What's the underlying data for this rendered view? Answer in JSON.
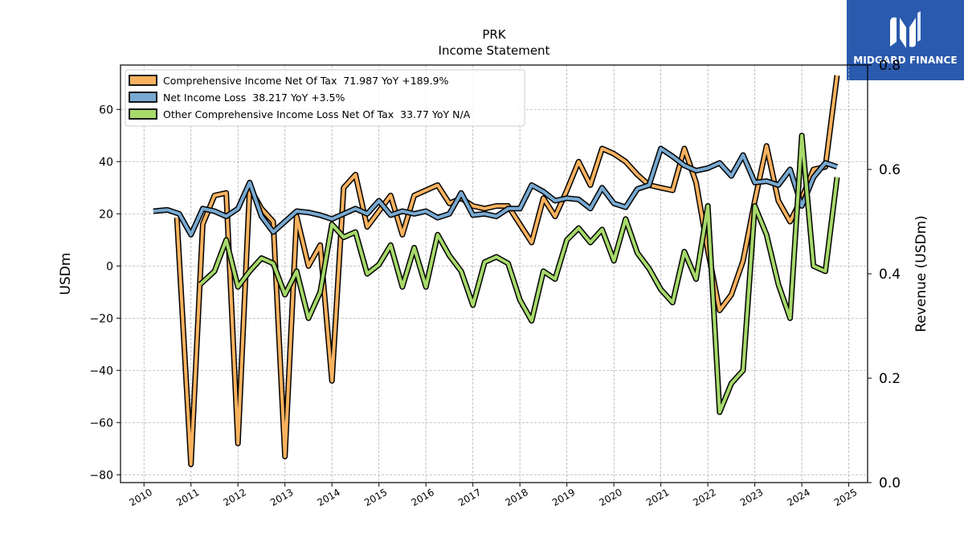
{
  "logo": {
    "text": "MIDGARD FINANCE",
    "icon": "midgard-logo-icon",
    "bg_color": "#2a5aad"
  },
  "chart_data": {
    "type": "line",
    "title": "PRK",
    "subtitle": "Income Statement",
    "ylabel_left": "USDm",
    "ylabel_right": "Revenue (USDm)",
    "ylim_left": [
      -83,
      77
    ],
    "ylim_right": [
      0,
      0.8
    ],
    "xlim": [
      2009.5,
      2025.4
    ],
    "yticks_left": [
      -80,
      -60,
      -40,
      -20,
      0,
      20,
      40,
      60
    ],
    "yticks_right": [
      0.0,
      0.2,
      0.4,
      0.6,
      0.8
    ],
    "xticks": [
      2010,
      2011,
      2012,
      2013,
      2014,
      2015,
      2016,
      2017,
      2018,
      2019,
      2020,
      2021,
      2022,
      2023,
      2024,
      2025
    ],
    "grid": true,
    "legend_position": "top-left",
    "series": [
      {
        "name": "Comprehensive Income Net Of Tax  71.987 YoY +189.9%",
        "color": "#f8b25f",
        "points": [
          [
            2010.7,
            18.5
          ],
          [
            2011.0,
            -76
          ],
          [
            2011.25,
            16
          ],
          [
            2011.5,
            27
          ],
          [
            2011.75,
            28
          ],
          [
            2012.0,
            -68
          ],
          [
            2012.25,
            30
          ],
          [
            2012.5,
            22
          ],
          [
            2012.75,
            17
          ],
          [
            2013.0,
            -73
          ],
          [
            2013.25,
            19
          ],
          [
            2013.5,
            0
          ],
          [
            2013.75,
            8
          ],
          [
            2014.0,
            -44
          ],
          [
            2014.25,
            30
          ],
          [
            2014.5,
            35
          ],
          [
            2014.75,
            15
          ],
          [
            2015.0,
            21
          ],
          [
            2015.25,
            27
          ],
          [
            2015.5,
            12
          ],
          [
            2015.75,
            27
          ],
          [
            2016.0,
            29
          ],
          [
            2016.25,
            31
          ],
          [
            2016.5,
            24
          ],
          [
            2016.75,
            26
          ],
          [
            2017.0,
            23
          ],
          [
            2017.25,
            22
          ],
          [
            2017.5,
            23
          ],
          [
            2017.75,
            23
          ],
          [
            2018.0,
            16
          ],
          [
            2018.25,
            9
          ],
          [
            2018.5,
            26
          ],
          [
            2018.75,
            19
          ],
          [
            2019.0,
            29
          ],
          [
            2019.25,
            40
          ],
          [
            2019.5,
            31
          ],
          [
            2019.75,
            45
          ],
          [
            2020.0,
            43
          ],
          [
            2020.25,
            40
          ],
          [
            2020.5,
            35
          ],
          [
            2020.75,
            31
          ],
          [
            2021.0,
            30
          ],
          [
            2021.25,
            29
          ],
          [
            2021.5,
            45
          ],
          [
            2021.75,
            32
          ],
          [
            2022.0,
            6
          ],
          [
            2022.25,
            -17
          ],
          [
            2022.5,
            -11
          ],
          [
            2022.75,
            2
          ],
          [
            2023.0,
            25
          ],
          [
            2023.25,
            46
          ],
          [
            2023.5,
            25
          ],
          [
            2023.75,
            17
          ],
          [
            2024.0,
            26
          ],
          [
            2024.25,
            37
          ],
          [
            2024.5,
            38
          ],
          [
            2024.75,
            73
          ]
        ]
      },
      {
        "name": "Net Income Loss  38.217 YoY +3.5%",
        "color": "#78a9d1",
        "points": [
          [
            2010.2,
            21
          ],
          [
            2010.5,
            21.5
          ],
          [
            2010.75,
            20
          ],
          [
            2011.0,
            12
          ],
          [
            2011.25,
            22
          ],
          [
            2011.5,
            21
          ],
          [
            2011.75,
            19
          ],
          [
            2012.0,
            22
          ],
          [
            2012.25,
            32
          ],
          [
            2012.5,
            19
          ],
          [
            2012.75,
            13
          ],
          [
            2013.0,
            17
          ],
          [
            2013.25,
            21
          ],
          [
            2013.5,
            20.5
          ],
          [
            2013.75,
            19.5
          ],
          [
            2014.0,
            18
          ],
          [
            2014.25,
            20
          ],
          [
            2014.5,
            22
          ],
          [
            2014.75,
            20
          ],
          [
            2015.0,
            25
          ],
          [
            2015.25,
            19.5
          ],
          [
            2015.5,
            21
          ],
          [
            2015.75,
            20
          ],
          [
            2016.0,
            21
          ],
          [
            2016.25,
            18.5
          ],
          [
            2016.5,
            20
          ],
          [
            2016.75,
            28
          ],
          [
            2017.0,
            19.5
          ],
          [
            2017.25,
            20
          ],
          [
            2017.5,
            19
          ],
          [
            2017.75,
            22
          ],
          [
            2018.0,
            22
          ],
          [
            2018.25,
            31
          ],
          [
            2018.5,
            28.5
          ],
          [
            2018.75,
            25
          ],
          [
            2019.0,
            26
          ],
          [
            2019.25,
            25.5
          ],
          [
            2019.5,
            22
          ],
          [
            2019.75,
            30
          ],
          [
            2020.0,
            24
          ],
          [
            2020.25,
            22.5
          ],
          [
            2020.5,
            29.5
          ],
          [
            2020.75,
            31
          ],
          [
            2021.0,
            45
          ],
          [
            2021.25,
            42
          ],
          [
            2021.5,
            38.5
          ],
          [
            2021.75,
            36.5
          ],
          [
            2022.0,
            37.5
          ],
          [
            2022.25,
            39.5
          ],
          [
            2022.5,
            34.5
          ],
          [
            2022.75,
            42.5
          ],
          [
            2023.0,
            32
          ],
          [
            2023.25,
            32.5
          ],
          [
            2023.5,
            31
          ],
          [
            2023.75,
            37
          ],
          [
            2024.0,
            23
          ],
          [
            2024.25,
            34
          ],
          [
            2024.5,
            39.5
          ],
          [
            2024.75,
            38
          ]
        ]
      },
      {
        "name": "Other Comprehensive Income Loss Net Of Tax  33.77 YoY N/A",
        "color": "#a6d96a",
        "points": [
          [
            2011.2,
            -7
          ],
          [
            2011.5,
            -2
          ],
          [
            2011.75,
            10
          ],
          [
            2012.0,
            -8
          ],
          [
            2012.25,
            -2
          ],
          [
            2012.5,
            3
          ],
          [
            2012.75,
            1
          ],
          [
            2013.0,
            -11
          ],
          [
            2013.25,
            -2
          ],
          [
            2013.5,
            -20
          ],
          [
            2013.75,
            -10
          ],
          [
            2014.0,
            16
          ],
          [
            2014.25,
            11
          ],
          [
            2014.5,
            13
          ],
          [
            2014.75,
            -3
          ],
          [
            2015.0,
            0.5
          ],
          [
            2015.25,
            8
          ],
          [
            2015.5,
            -8
          ],
          [
            2015.75,
            7
          ],
          [
            2016.0,
            -8
          ],
          [
            2016.25,
            12
          ],
          [
            2016.5,
            4
          ],
          [
            2016.75,
            -2
          ],
          [
            2017.0,
            -15
          ],
          [
            2017.25,
            1.5
          ],
          [
            2017.5,
            3.5
          ],
          [
            2017.75,
            1
          ],
          [
            2018.0,
            -13
          ],
          [
            2018.25,
            -21
          ],
          [
            2018.5,
            -2
          ],
          [
            2018.75,
            -5
          ],
          [
            2019.0,
            10
          ],
          [
            2019.25,
            14.5
          ],
          [
            2019.5,
            9
          ],
          [
            2019.75,
            14
          ],
          [
            2020.0,
            2
          ],
          [
            2020.25,
            18
          ],
          [
            2020.5,
            5
          ],
          [
            2020.75,
            -1
          ],
          [
            2021.0,
            -9
          ],
          [
            2021.25,
            -14
          ],
          [
            2021.5,
            5.5
          ],
          [
            2021.75,
            -5
          ],
          [
            2022.0,
            23
          ],
          [
            2022.25,
            -56
          ],
          [
            2022.5,
            -45
          ],
          [
            2022.75,
            -40
          ],
          [
            2023.0,
            23
          ],
          [
            2023.25,
            12
          ],
          [
            2023.5,
            -7
          ],
          [
            2023.75,
            -20
          ],
          [
            2024.0,
            50
          ],
          [
            2024.25,
            0
          ],
          [
            2024.5,
            -2
          ],
          [
            2024.75,
            34
          ]
        ]
      }
    ]
  }
}
